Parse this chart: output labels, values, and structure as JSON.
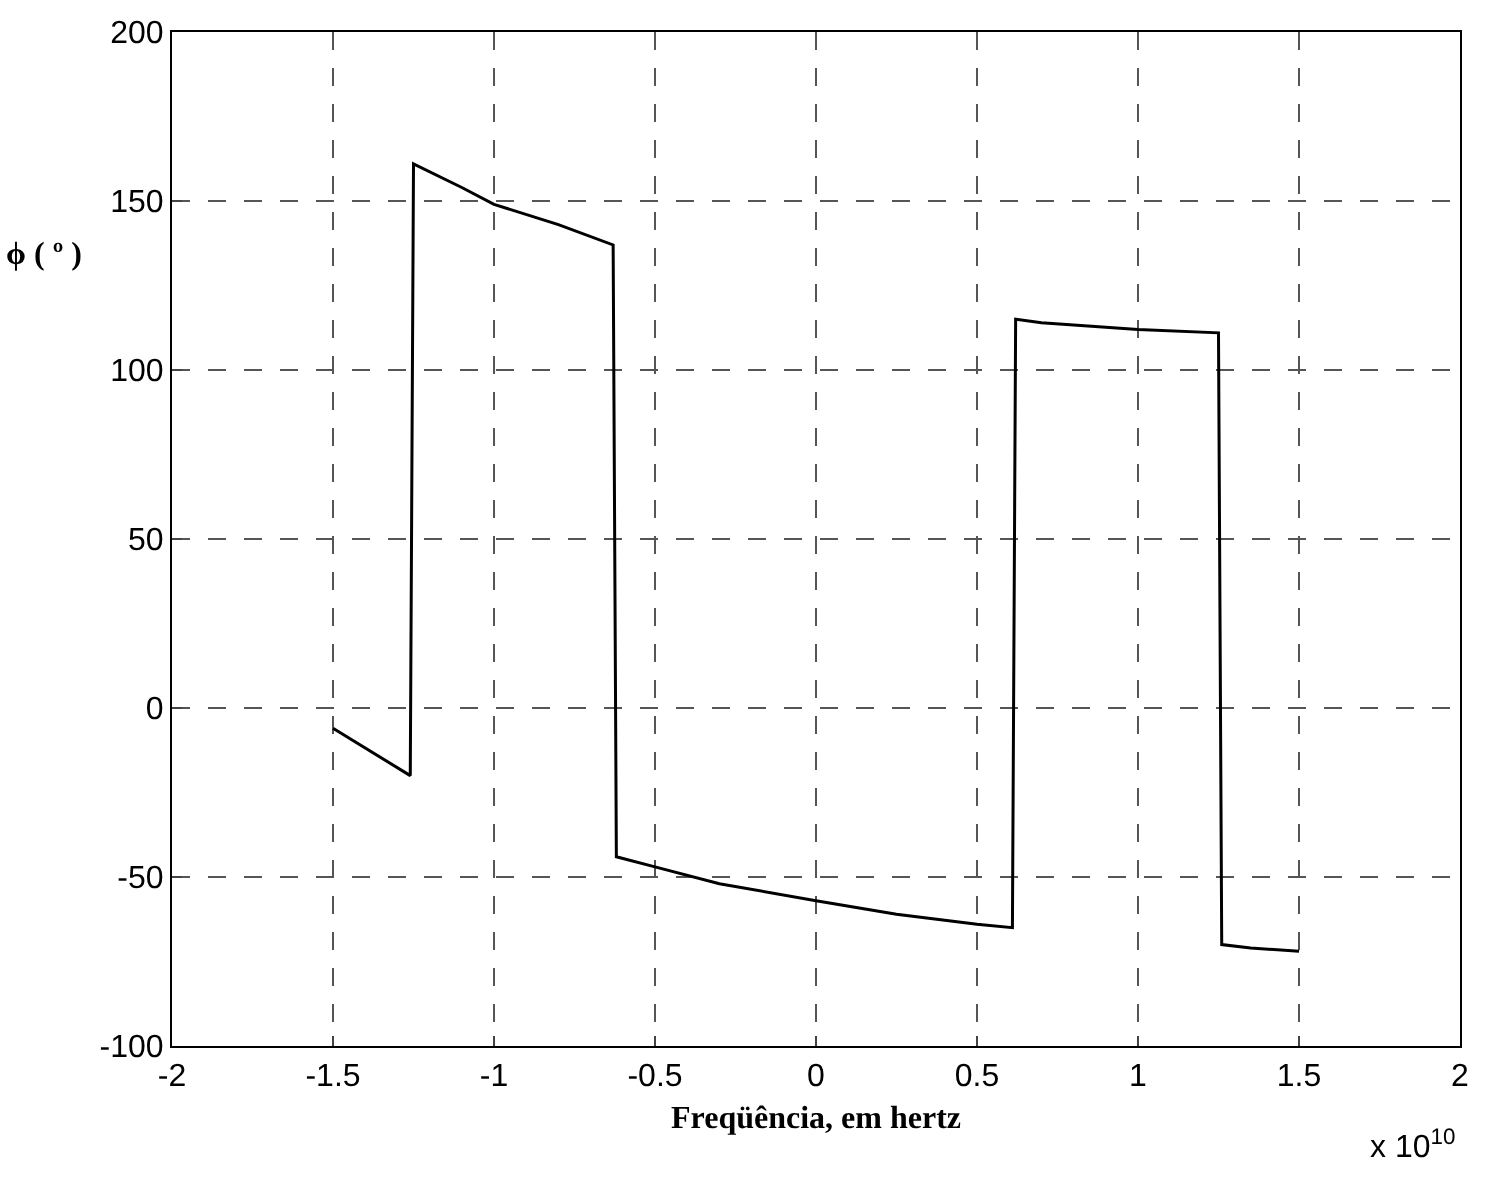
{
  "chart_data": {
    "type": "line",
    "xlabel": "Freqüência, em hertz",
    "ylabel": "ϕ ( º )",
    "annotations": [
      "x 10$^{10}$"
    ],
    "x": [
      -1.5,
      -1.26,
      -1.25,
      -1.1,
      -1.0,
      -0.8,
      -0.63,
      -0.62,
      -0.5,
      -0.3,
      0,
      0.25,
      0.5,
      0.61,
      0.62,
      0.7,
      1.0,
      1.25,
      1.26,
      1.35,
      1.5
    ],
    "series": [
      {
        "color": "#000000",
        "values": [
          -6,
          -20,
          161,
          154,
          149,
          143,
          137,
          -44,
          -47,
          -52,
          -57,
          -61,
          -64,
          -65,
          115,
          114,
          112,
          111,
          -70,
          -71,
          -72
        ]
      }
    ],
    "xlim": [
      -2,
      2
    ],
    "xticks": [
      -2,
      -1.5,
      -1,
      -0.5,
      0,
      0.5,
      1,
      1.5,
      2
    ],
    "ylim": [
      -100,
      200
    ],
    "yticks": [
      -100,
      -50,
      0,
      50,
      100,
      150,
      200
    ],
    "grid": true,
    "marker": "none",
    "line_style": "solid"
  }
}
